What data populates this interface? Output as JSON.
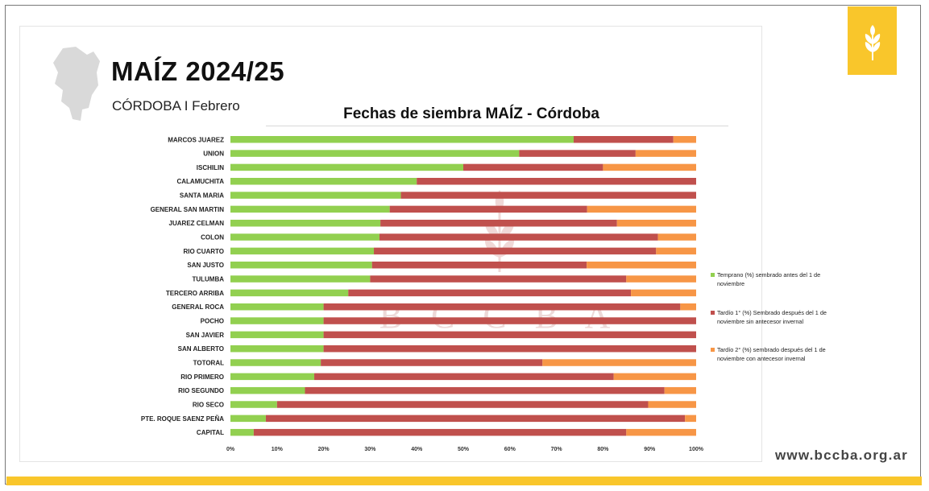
{
  "header": {
    "title": "MAÍZ 2024/25",
    "subtitle": "CÓRDOBA I Febrero"
  },
  "footer": {
    "website": "www.bccba.org.ar"
  },
  "watermark": {
    "text": "B C C B A"
  },
  "colors": {
    "temprano": "#92d050",
    "tardio1": "#c0504d",
    "tardio2": "#f79646",
    "accent": "#f9c62b"
  },
  "chart_data": {
    "type": "bar",
    "orientation": "horizontal",
    "stacked": "percent",
    "title": "Fechas de siembra MAÍZ - Córdoba",
    "xlim": [
      0,
      100
    ],
    "x_ticks": [
      "0%",
      "10%",
      "20%",
      "30%",
      "40%",
      "50%",
      "60%",
      "70%",
      "80%",
      "90%",
      "100%"
    ],
    "legend_position": "right",
    "categories": [
      "MARCOS JUAREZ",
      "UNION",
      "ISCHILIN",
      "CALAMUCHITA",
      "SANTA MARIA",
      "GENERAL SAN MARTIN",
      "JUAREZ CELMAN",
      "COLON",
      "RIO CUARTO",
      "SAN JUSTO",
      "TULUMBA",
      "TERCERO ARRIBA",
      "GENERAL ROCA",
      "POCHO",
      "SAN JAVIER",
      "SAN ALBERTO",
      "TOTORAL",
      "RIO PRIMERO",
      "RIO SEGUNDO",
      "RIO SECO",
      "PTE. ROQUE SAENZ PEÑA",
      "CAPITAL"
    ],
    "series": [
      {
        "name": "Temprano (%) sembrado antes del 1 de noviembre",
        "values": [
          73.7,
          62,
          50,
          40,
          36.6,
          34.2,
          32.2,
          32,
          30.8,
          30.4,
          30,
          25.3,
          20,
          20,
          20,
          20,
          19.4,
          18,
          16,
          10,
          7.6,
          5
        ]
      },
      {
        "name": "Tardío 1° (%) Sembrado después del 1 de noviembre sin antecesor invernal",
        "values": [
          21.4,
          25,
          30,
          60,
          63.4,
          42.4,
          50.8,
          59.8,
          60.6,
          46.1,
          55,
          60.7,
          76.6,
          80,
          80,
          80,
          47.6,
          64.3,
          77.2,
          79.7,
          90,
          80
        ]
      },
      {
        "name": "Tardío 2° (%) sembrado después del 1 de noviembre con antecesor invernal",
        "values": [
          4.9,
          13,
          20,
          0,
          0,
          23.4,
          17,
          8.2,
          8.6,
          23.5,
          15,
          14,
          3.4,
          0,
          0,
          0,
          33,
          17.7,
          6.8,
          10.3,
          2.4,
          15
        ]
      }
    ]
  }
}
